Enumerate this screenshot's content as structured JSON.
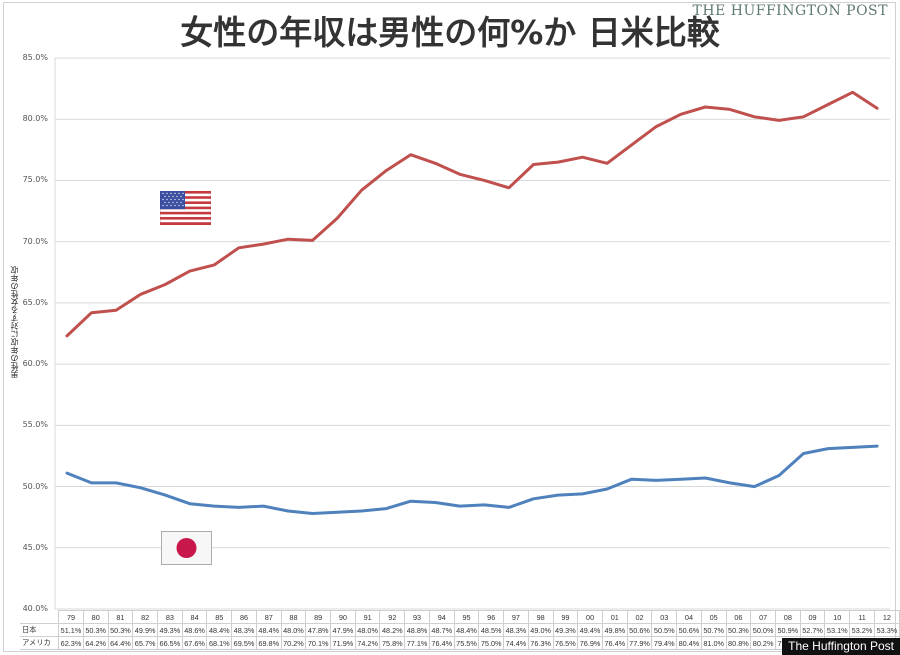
{
  "header": {
    "title": "女性の年収は男性の何%か 日米比較",
    "brand": "THE HUFFINGTON POST"
  },
  "footer": {
    "badge": "The Huffington Post"
  },
  "legend": {
    "us_flag": "us-flag-icon",
    "japan_flag": "japan-flag-icon"
  },
  "colors": {
    "us": "#c0504d",
    "japan": "#4f81bd",
    "grid": "#d9d9d9"
  },
  "table": {
    "years": [
      "79",
      "80",
      "81",
      "82",
      "83",
      "84",
      "85",
      "86",
      "87",
      "88",
      "89",
      "90",
      "91",
      "92",
      "93",
      "94",
      "95",
      "96",
      "97",
      "98",
      "99",
      "00",
      "01",
      "02",
      "03",
      "04",
      "05",
      "06",
      "07",
      "08",
      "09",
      "10",
      "11",
      "12"
    ],
    "rows": [
      {
        "label": "日本",
        "values": [
          "51.1%",
          "50.3%",
          "50.3%",
          "49.9%",
          "49.3%",
          "48.6%",
          "48.4%",
          "48.3%",
          "48.4%",
          "48.0%",
          "47.8%",
          "47.9%",
          "48.0%",
          "48.2%",
          "48.8%",
          "48.7%",
          "48.4%",
          "48.5%",
          "48.3%",
          "49.0%",
          "49.3%",
          "49.4%",
          "49.8%",
          "50.6%",
          "50.5%",
          "50.6%",
          "50.7%",
          "50.3%",
          "50.0%",
          "50.9%",
          "52.7%",
          "53.1%",
          "53.2%",
          "53.3%"
        ]
      },
      {
        "label": "アメリカ",
        "values": [
          "62.3%",
          "64.2%",
          "64.4%",
          "65.7%",
          "66.5%",
          "67.6%",
          "68.1%",
          "69.5%",
          "69.8%",
          "70.2%",
          "70.1%",
          "71.9%",
          "74.2%",
          "75.8%",
          "77.1%",
          "76.4%",
          "75.5%",
          "75.0%",
          "74.4%",
          "76.3%",
          "76.5%",
          "76.9%",
          "76.4%",
          "77.9%",
          "79.4%",
          "80.4%",
          "81.0%",
          "80.8%",
          "80.2%",
          "79.9%",
          "80.2%",
          "81.2%",
          "82.2%",
          "80.9%"
        ]
      }
    ]
  },
  "chart_data": {
    "type": "line",
    "title": "女性の年収は男性の何%か 日米比較",
    "xlabel": "",
    "ylabel": "男性の年収に対する女性の年収",
    "ylim": [
      40,
      85
    ],
    "yticks": [
      "40.0%",
      "45.0%",
      "50.0%",
      "55.0%",
      "60.0%",
      "65.0%",
      "70.0%",
      "75.0%",
      "80.0%",
      "85.0%"
    ],
    "grid": true,
    "legend_position": "inline flag icons (US flag near upper line, Japan flag near lower line)",
    "categories": [
      "79",
      "80",
      "81",
      "82",
      "83",
      "84",
      "85",
      "86",
      "87",
      "88",
      "89",
      "90",
      "91",
      "92",
      "93",
      "94",
      "95",
      "96",
      "97",
      "98",
      "99",
      "00",
      "01",
      "02",
      "03",
      "04",
      "05",
      "06",
      "07",
      "08",
      "09",
      "10",
      "11",
      "12"
    ],
    "series": [
      {
        "name": "アメリカ",
        "color": "#c0504d",
        "values": [
          62.3,
          64.2,
          64.4,
          65.7,
          66.5,
          67.6,
          68.1,
          69.5,
          69.8,
          70.2,
          70.1,
          71.9,
          74.2,
          75.8,
          77.1,
          76.4,
          75.5,
          75.0,
          74.4,
          76.3,
          76.5,
          76.9,
          76.4,
          77.9,
          79.4,
          80.4,
          81.0,
          80.8,
          80.2,
          79.9,
          80.2,
          81.2,
          82.2,
          80.9
        ]
      },
      {
        "name": "日本",
        "color": "#4f81bd",
        "values": [
          51.1,
          50.3,
          50.3,
          49.9,
          49.3,
          48.6,
          48.4,
          48.3,
          48.4,
          48.0,
          47.8,
          47.9,
          48.0,
          48.2,
          48.8,
          48.7,
          48.4,
          48.5,
          48.3,
          49.0,
          49.3,
          49.4,
          49.8,
          50.6,
          50.5,
          50.6,
          50.7,
          50.3,
          50.0,
          50.9,
          52.7,
          53.1,
          53.2,
          53.3
        ]
      }
    ]
  }
}
